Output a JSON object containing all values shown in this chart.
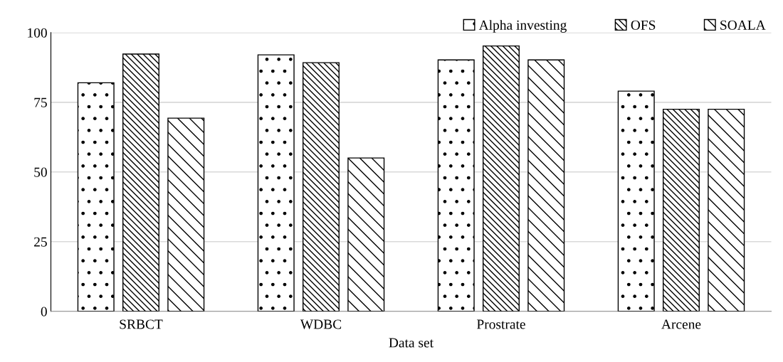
{
  "chart_data": {
    "type": "bar",
    "xlabel": "Data set",
    "categories": [
      "SRBCT",
      "WDBC",
      "Prostrate",
      "Arcene"
    ],
    "series": [
      {
        "name": "Alpha investing",
        "color": "#000000",
        "values": [
          82,
          92,
          90.2,
          79
        ]
      },
      {
        "name": "OFS",
        "color": "#000000",
        "values": [
          92.3,
          89.2,
          95.2,
          72.5
        ]
      },
      {
        "name": "SOALA",
        "color": "#000000",
        "values": [
          69.3,
          55,
          90.2,
          72.5
        ]
      }
    ],
    "ylim": [
      0,
      100
    ],
    "yticks": [
      0,
      25,
      50,
      75,
      100
    ],
    "grid": "y",
    "legend": "top right"
  }
}
